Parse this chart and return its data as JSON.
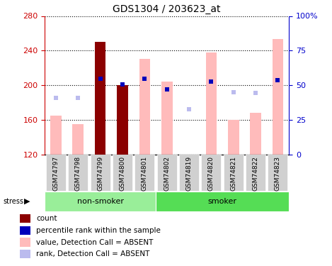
{
  "title": "GDS1304 / 203623_at",
  "samples": [
    "GSM74797",
    "GSM74798",
    "GSM74799",
    "GSM74800",
    "GSM74801",
    "GSM74802",
    "GSM74819",
    "GSM74820",
    "GSM74821",
    "GSM74822",
    "GSM74823"
  ],
  "ylim": [
    120,
    280
  ],
  "ylabel_left_color": "#cc0000",
  "ylabel_right_color": "#0000cc",
  "value_bars": [
    165,
    155,
    250,
    200,
    230,
    204,
    120,
    238,
    160,
    168,
    253
  ],
  "rank_dots": [
    185,
    185,
    207,
    201,
    207,
    195,
    172,
    204,
    192,
    191,
    206
  ],
  "value_bar_color": "#ffbbbb",
  "dark_red_bar_indices": [
    2,
    3
  ],
  "dark_red_color": "#8b0000",
  "rank_dot_color": "#bbbbee",
  "blue_dot_indices": [
    2,
    3,
    4,
    5,
    7,
    10
  ],
  "blue_dot_values": [
    207,
    201,
    207,
    195,
    204,
    206
  ],
  "blue_dot_color": "#0000bb",
  "non_smoker_count": 5,
  "ns_color": "#99ee99",
  "smoker_color": "#55dd55",
  "legend_items": [
    {
      "color": "#8b0000",
      "marker": "square",
      "label": "count"
    },
    {
      "color": "#0000bb",
      "marker": "square",
      "label": "percentile rank within the sample"
    },
    {
      "color": "#ffbbbb",
      "marker": "square",
      "label": "value, Detection Call = ABSENT"
    },
    {
      "color": "#bbbbee",
      "marker": "square",
      "label": "rank, Detection Call = ABSENT"
    }
  ]
}
